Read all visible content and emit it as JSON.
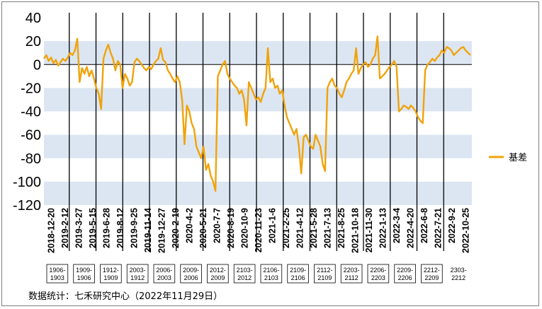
{
  "chart_data": {
    "type": "line",
    "title": "",
    "xlabel": "",
    "ylabel": "",
    "ylim": [
      -120,
      40
    ],
    "y_ticks": [
      "40",
      "20",
      "0",
      "-20",
      "-40",
      "-60",
      "-80",
      "-100",
      "-120"
    ],
    "grid": "alternating horizontal bands",
    "legend_position": "right",
    "x_tick_labels": [
      "2018-12-20",
      "2019-2-12",
      "2019-3-27",
      "2019-5-15",
      "2019-6-28",
      "2019-8-12",
      "2019-9-25",
      "2019-11-14",
      "2019-12-27",
      "2020-2-19",
      "2020-4-2",
      "2020-5-21",
      "2020-7-7",
      "2020-8-19",
      "2020-10-9",
      "2020-11-23",
      "2021-1-6",
      "2021-2-25",
      "2021-4-12",
      "2021-5-28",
      "2021-7-13",
      "2021-8-25",
      "2021-10-18",
      "2021-11-30",
      "2022-1-13",
      "2022-3-4",
      "2022-4-20",
      "2022-6-8",
      "2022-7-21",
      "2022-9-2",
      "2022-10-25"
    ],
    "contract_switches": [
      "1906-1903",
      "1909-1906",
      "1912-1909",
      "2003-1912",
      "2006-2003",
      "2009-2006",
      "2012-2009",
      "2103-2012",
      "2106-2103",
      "2109-2106",
      "2112-2109",
      "2203-2112",
      "2206-2203",
      "2209-2206",
      "2212-2209",
      "2303-2212"
    ],
    "series": [
      {
        "name": "基差",
        "color": "#F0A30A",
        "x_range": [
          "2018-12-20",
          "2022-11-29"
        ],
        "values": [
          5,
          8,
          3,
          6,
          1,
          4,
          -1,
          2,
          5,
          3,
          6,
          10,
          8,
          12,
          22,
          -15,
          -3,
          -8,
          -2,
          -10,
          -5,
          -12,
          -20,
          -25,
          -38,
          5,
          12,
          17,
          10,
          5,
          -5,
          3,
          0,
          -20,
          -8,
          -12,
          -18,
          -15,
          2,
          5,
          3,
          0,
          -3,
          -5,
          -2,
          -4,
          0,
          3,
          5,
          14,
          4,
          2,
          -5,
          -8,
          -12,
          -15,
          -10,
          -15,
          -30,
          -68,
          -35,
          -40,
          -50,
          -55,
          -70,
          -75,
          -80,
          -70,
          -90,
          -85,
          -95,
          -100,
          -108,
          -10,
          -5,
          0,
          3,
          -8,
          -12,
          -15,
          -18,
          -20,
          -25,
          -22,
          -30,
          -52,
          -15,
          -20,
          -25,
          -30,
          -28,
          -32,
          -25,
          -20,
          14,
          -15,
          -12,
          -20,
          -18,
          -25,
          -22,
          -35,
          -45,
          -50,
          -55,
          -60,
          -55,
          -70,
          -93,
          -62,
          -60,
          -65,
          -70,
          -72,
          -60,
          -65,
          -70,
          -85,
          -91,
          -20,
          -15,
          -12,
          -18,
          -20,
          -25,
          -28,
          -22,
          -15,
          -12,
          -8,
          -5,
          14,
          -8,
          -3,
          0,
          2,
          -2,
          0,
          5,
          8,
          24,
          -12,
          -10,
          -8,
          -5,
          -2,
          0,
          3,
          -2,
          -40,
          -38,
          -35,
          -36,
          -38,
          -35,
          -37,
          -40,
          -45,
          -48,
          -50,
          -5,
          0,
          2,
          5,
          3,
          6,
          8,
          12,
          10,
          15,
          14,
          12,
          8,
          10,
          12,
          14,
          15,
          12,
          10,
          8
        ]
      }
    ]
  },
  "legend": {
    "label": "基差"
  },
  "source": "数据统计：七禾研究中心（2022年11月29日）",
  "colors": {
    "band": "#DCE6F2",
    "line": "#F0A30A",
    "axis": "#000000"
  }
}
